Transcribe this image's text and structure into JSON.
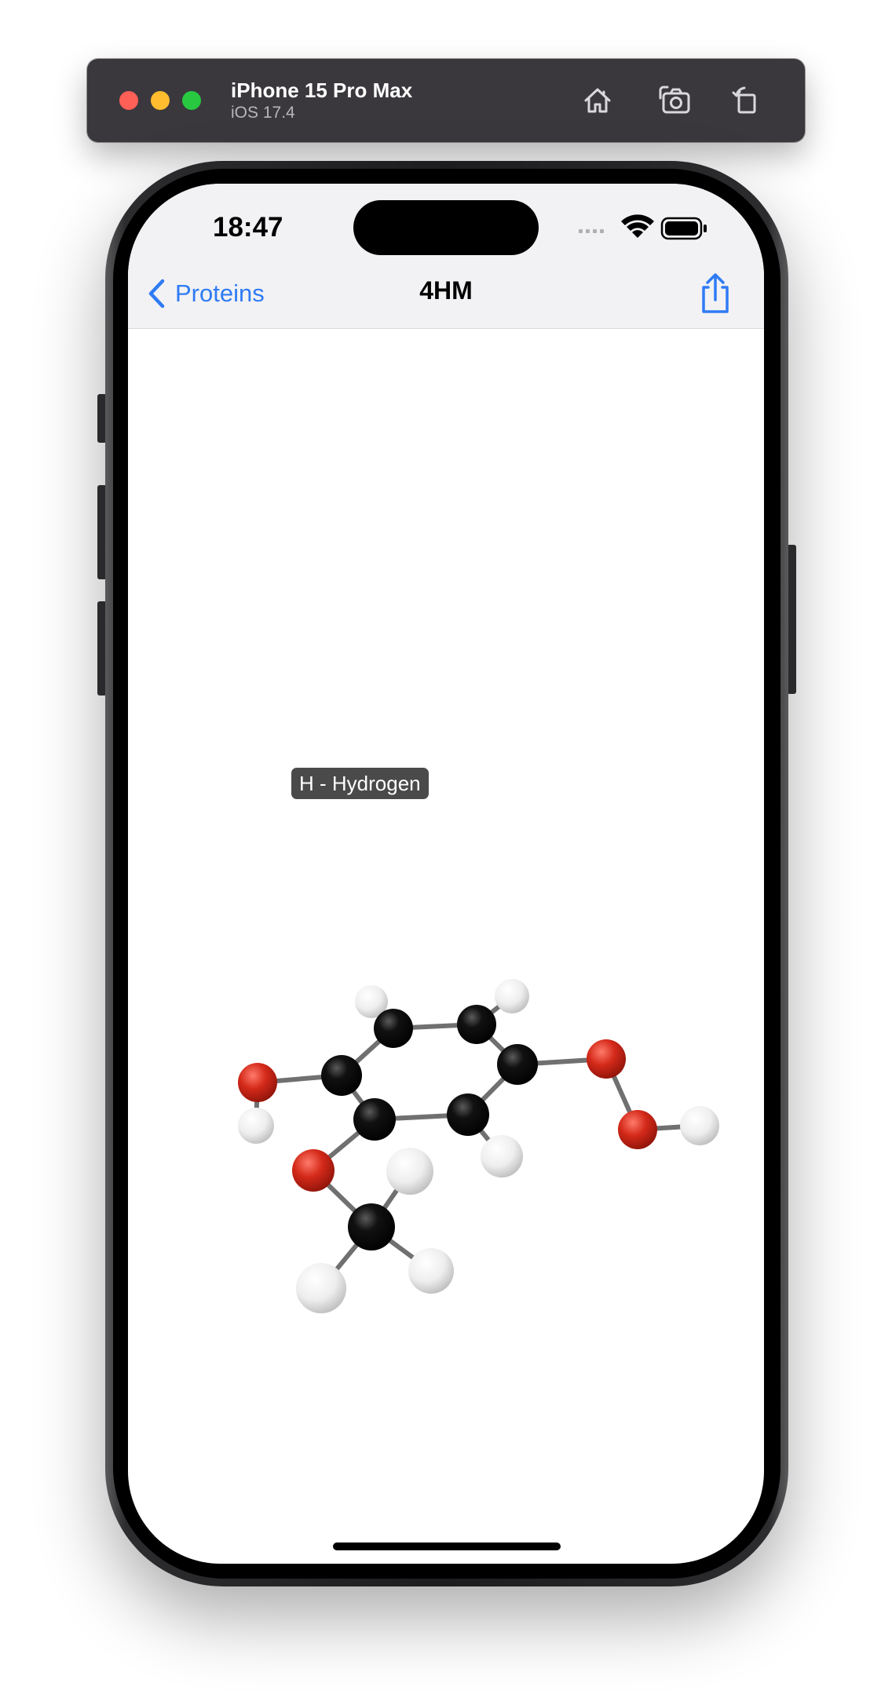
{
  "simulator": {
    "device_name": "iPhone 15 Pro Max",
    "os_version": "iOS 17.4",
    "buttons": [
      "home-icon",
      "screenshot-icon",
      "rotate-icon"
    ]
  },
  "status_bar": {
    "time": "18:47"
  },
  "nav": {
    "back_label": "Proteins",
    "title": "4HM",
    "accent_color": "#2f7bf5"
  },
  "tooltip": {
    "label": "H - Hydrogen"
  },
  "atom_colors": {
    "C": "#000000",
    "O": "#d42a1a",
    "H": "#f4f4f4"
  }
}
